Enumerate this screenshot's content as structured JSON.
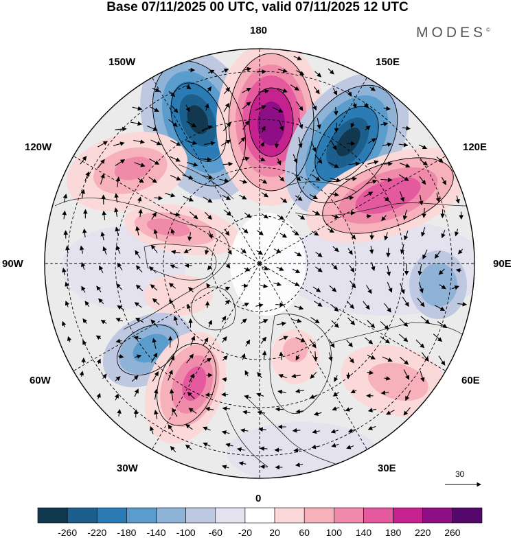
{
  "title": "Base 07/11/2025 00 UTC, valid 07/11/2025 12 UTC",
  "brand": "MODES",
  "brand_mark": "©",
  "longitude_labels": {
    "top": "180",
    "top_left": "150W",
    "top_right": "150E",
    "upper_left": "120W",
    "upper_right": "120E",
    "left": "90W",
    "right": "90E",
    "lower_left": "60W",
    "lower_right": "60E",
    "bottom_left": "30W",
    "bottom_right": "30E",
    "bottom": "0"
  },
  "reference_vector": "30",
  "colorbar": {
    "labels": [
      "-260",
      "-220",
      "-180",
      "-140",
      "-100",
      "-60",
      "-20",
      "20",
      "60",
      "100",
      "140",
      "180",
      "220",
      "260"
    ],
    "colors": [
      "#12384f",
      "#1c5f8c",
      "#2b7cb4",
      "#5a9ccb",
      "#8fb2d7",
      "#bfc8e1",
      "#e4e2ef",
      "#ffffff",
      "#fbd9d9",
      "#f6b1bb",
      "#ef8aaa",
      "#e55a9f",
      "#c6228f",
      "#8e0f85",
      "#54086b"
    ]
  },
  "anomaly_centers": [
    {
      "name": "low-150w",
      "sign": "neg",
      "value": -260
    },
    {
      "name": "high-180",
      "sign": "pos",
      "value": 260
    },
    {
      "name": "low-150e",
      "sign": "neg",
      "value": -260
    },
    {
      "name": "high-120e",
      "sign": "pos",
      "value": 180
    },
    {
      "name": "high-120w",
      "sign": "pos",
      "value": 100
    },
    {
      "name": "high-105w",
      "sign": "pos",
      "value": 140
    },
    {
      "name": "low-60w",
      "sign": "neg",
      "value": -180
    },
    {
      "name": "high-45w",
      "sign": "pos",
      "value": 180
    },
    {
      "name": "low-90e",
      "sign": "neg",
      "value": -100
    },
    {
      "name": "high-50e",
      "sign": "pos",
      "value": 60
    },
    {
      "name": "high-europe",
      "sign": "pos",
      "value": 60
    }
  ]
}
